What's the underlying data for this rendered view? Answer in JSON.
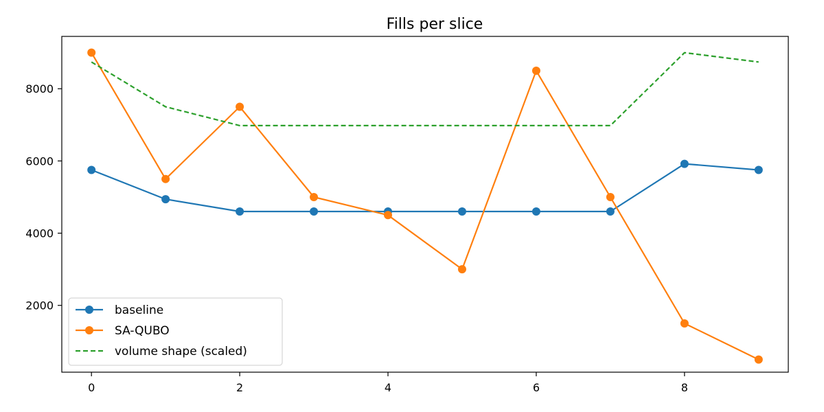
{
  "chart_data": {
    "type": "line",
    "title": "Fills per slice",
    "xlabel": "",
    "ylabel": "",
    "x": [
      0,
      1,
      2,
      3,
      4,
      5,
      6,
      7,
      8,
      9
    ],
    "xlim": [
      -0.4,
      9.4
    ],
    "ylim": [
      150,
      9450
    ],
    "xticks": [
      0,
      2,
      4,
      6,
      8
    ],
    "yticks": [
      2000,
      4000,
      6000,
      8000
    ],
    "grid": false,
    "legend_position": "lower-left",
    "series": [
      {
        "name": "baseline",
        "color": "#1f77b4",
        "style": "solid",
        "marker": "circle",
        "values": [
          5750,
          4940,
          4600,
          4600,
          4600,
          4600,
          4600,
          4600,
          5920,
          5750
        ]
      },
      {
        "name": "SA-QUBO",
        "color": "#ff7f0e",
        "style": "solid",
        "marker": "circle",
        "values": [
          9000,
          5500,
          7500,
          5000,
          4500,
          3000,
          8500,
          5000,
          1500,
          500
        ]
      },
      {
        "name": "volume shape (scaled)",
        "color": "#2ca02c",
        "style": "dashed",
        "marker": "none",
        "values": [
          8740,
          7500,
          6980,
          6980,
          6980,
          6980,
          6980,
          6980,
          9000,
          8740
        ]
      }
    ]
  }
}
